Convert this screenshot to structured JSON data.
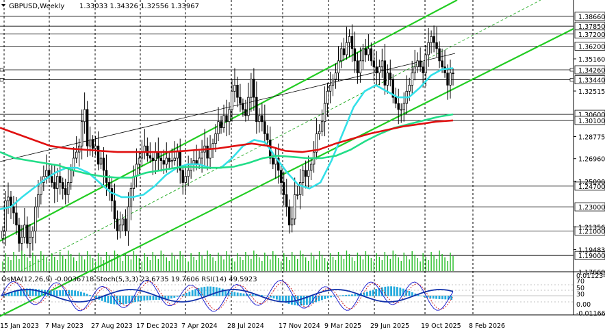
{
  "chart_data": {
    "type": "candlestick",
    "header": {
      "symbol": "GBPUSD,Weekly",
      "quote": "1.33033 1.34326 1.32556 1.33967"
    },
    "price_levels": [
      {
        "label": "1.38660",
        "value": 1.3866,
        "color": "#000000"
      },
      {
        "label": "1.37850",
        "value": 1.3785,
        "color": "#000000"
      },
      {
        "label": "1.37200",
        "value": 1.372,
        "color": "#000000"
      },
      {
        "label": "1.36200",
        "value": 1.362,
        "color": "#000000"
      },
      {
        "label": "1.34260",
        "value": 1.3426,
        "color": "#ffffff"
      },
      {
        "label": "1.33440",
        "value": 1.3344,
        "color": "#ffffff"
      },
      {
        "label": "1.30600",
        "value": 1.306,
        "color": "#000000"
      },
      {
        "label": "1.30100",
        "value": 1.301,
        "color": "#000000"
      },
      {
        "label": "1.24700",
        "value": 1.247,
        "color": "#000000"
      },
      {
        "label": "1.23000",
        "value": 1.23,
        "color": "#000000"
      },
      {
        "label": "1.21000",
        "value": 1.21,
        "color": "#000000"
      },
      {
        "label": "1.19000",
        "value": 1.19,
        "color": "#000000"
      }
    ],
    "scale_ticks": [
      "1.35160",
      "1.32515",
      "1.28775",
      "1.26960",
      "1.25090",
      "1.21356",
      "1.19483",
      "1.17660"
    ],
    "date_labels": [
      "15 Jan 2023",
      "7 May 2023",
      "27 Aug 2023",
      "17 Dec 2023",
      "7 Apr 2024",
      "28 Jul 2024",
      "17 Nov 2024",
      "9 Mar 2025",
      "29 Jun 2025",
      "19 Oct 2025",
      "8 Feb 2026"
    ],
    "y_range": [
      1.1766,
      1.4
    ],
    "indicator_text": "OsMA(12,26,9) -0.0036718  Stoch(5,3,3) 23.6735 19.7606  RSI(14) 49.5923",
    "indicator_scale": [
      "0.0112349",
      "70",
      "50",
      "30",
      "0.00",
      "-0.0116644"
    ],
    "series": [
      {
        "name": "close",
        "values": [
          1.21,
          1.235,
          1.238,
          1.23,
          1.225,
          1.215,
          1.2,
          1.205,
          1.215,
          1.2,
          1.205,
          1.21,
          1.23,
          1.24,
          1.25,
          1.255,
          1.26,
          1.255,
          1.25,
          1.245,
          1.255,
          1.25,
          1.245,
          1.24,
          1.25,
          1.26,
          1.27,
          1.275,
          1.28,
          1.3,
          1.31,
          1.28,
          1.285,
          1.278,
          1.28,
          1.265,
          1.27,
          1.26,
          1.25,
          1.245,
          1.235,
          1.22,
          1.21,
          1.215,
          1.22,
          1.21,
          1.23,
          1.245,
          1.255,
          1.265,
          1.27,
          1.275,
          1.28,
          1.272,
          1.27,
          1.268,
          1.275,
          1.27,
          1.268,
          1.265,
          1.27,
          1.267,
          1.268,
          1.27,
          1.275,
          1.26,
          1.25,
          1.255,
          1.26,
          1.265,
          1.268,
          1.265,
          1.27,
          1.275,
          1.28,
          1.27,
          1.278,
          1.282,
          1.29,
          1.3,
          1.295,
          1.305,
          1.3,
          1.31,
          1.325,
          1.33,
          1.32,
          1.315,
          1.31,
          1.305,
          1.32,
          1.335,
          1.32,
          1.3,
          1.305,
          1.3,
          1.29,
          1.285,
          1.27,
          1.265,
          1.27,
          1.26,
          1.25,
          1.24,
          1.23,
          1.215,
          1.22,
          1.24,
          1.24,
          1.25,
          1.26,
          1.255,
          1.26,
          1.265,
          1.275,
          1.29,
          1.292,
          1.3,
          1.315,
          1.325,
          1.33,
          1.335,
          1.34,
          1.35,
          1.36,
          1.355,
          1.365,
          1.37,
          1.36,
          1.35,
          1.34,
          1.35,
          1.36,
          1.355,
          1.36,
          1.35,
          1.345,
          1.34,
          1.345,
          1.35,
          1.33,
          1.34,
          1.335,
          1.32,
          1.315,
          1.31,
          1.31,
          1.315,
          1.325,
          1.33,
          1.34,
          1.345,
          1.35,
          1.345,
          1.34,
          1.355,
          1.365,
          1.37,
          1.365,
          1.36,
          1.35,
          1.345,
          1.34,
          1.33,
          1.34,
          1.3397
        ]
      },
      {
        "name": "ma-cyan",
        "values": [
          1.228,
          1.23,
          1.238,
          1.245,
          1.252,
          1.258,
          1.262,
          1.262,
          1.258,
          1.25,
          1.242,
          1.238,
          1.238,
          1.24,
          1.247,
          1.256,
          1.262,
          1.265,
          1.265,
          1.262,
          1.262,
          1.27,
          1.28,
          1.285,
          1.283,
          1.27,
          1.258,
          1.248,
          1.245,
          1.25,
          1.268,
          1.29,
          1.312,
          1.325,
          1.33,
          1.325,
          1.32,
          1.32,
          1.328,
          1.338,
          1.343,
          1.344
        ]
      },
      {
        "name": "ma-green",
        "values": [
          1.275,
          1.27,
          1.268,
          1.266,
          1.264,
          1.26,
          1.257,
          1.255,
          1.254,
          1.254,
          1.258,
          1.26,
          1.262,
          1.263,
          1.262,
          1.262,
          1.263,
          1.266,
          1.27,
          1.272,
          1.271,
          1.27,
          1.27,
          1.272,
          1.277,
          1.284,
          1.29,
          1.295,
          1.298,
          1.301,
          1.304,
          1.306
        ]
      },
      {
        "name": "ma-red",
        "values": [
          1.295,
          1.29,
          1.285,
          1.28,
          1.278,
          1.277,
          1.276,
          1.275,
          1.275,
          1.275,
          1.275,
          1.276,
          1.277,
          1.278,
          1.28,
          1.282,
          1.28,
          1.276,
          1.275,
          1.277,
          1.282,
          1.286,
          1.29,
          1.293,
          1.296,
          1.298,
          1.3,
          1.301
        ]
      }
    ]
  }
}
